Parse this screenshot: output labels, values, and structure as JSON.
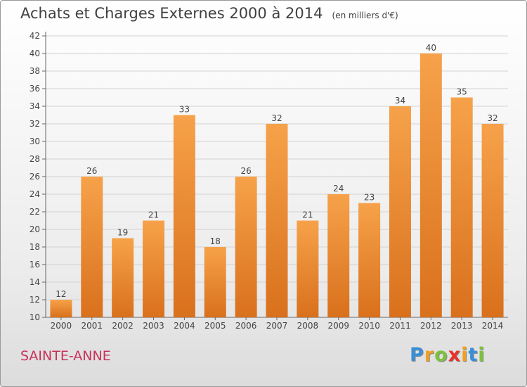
{
  "chart_data": {
    "type": "bar",
    "title": "Achats et Charges Externes 2000 à 2014",
    "subtitle": "(en milliers d'€)",
    "categories": [
      "2000",
      "2001",
      "2002",
      "2003",
      "2004",
      "2005",
      "2006",
      "2007",
      "2008",
      "2009",
      "2010",
      "2011",
      "2012",
      "2013",
      "2014"
    ],
    "values": [
      12,
      26,
      19,
      21,
      33,
      18,
      26,
      32,
      21,
      24,
      23,
      34,
      40,
      35,
      32
    ],
    "ylim": [
      10,
      42
    ],
    "yticks": [
      10,
      12,
      14,
      16,
      18,
      20,
      22,
      24,
      26,
      28,
      30,
      32,
      34,
      36,
      38,
      40,
      42
    ],
    "grid": true,
    "bar_color_top": "#f6a24a",
    "bar_color_bottom": "#d9701c",
    "xlabel": "",
    "ylabel": ""
  },
  "footer": {
    "place": "SAINTE-ANNE",
    "logo_letters": [
      {
        "ch": "P",
        "color": "#3a8fd6"
      },
      {
        "ch": "r",
        "color": "#f0a020"
      },
      {
        "ch": "o",
        "color": "#7cc23c"
      },
      {
        "ch": "x",
        "color": "#e8302a"
      },
      {
        "ch": "i",
        "color": "#f0a020"
      },
      {
        "ch": "t",
        "color": "#3a8fd6"
      },
      {
        "ch": "i",
        "color": "#7cc23c"
      }
    ]
  }
}
